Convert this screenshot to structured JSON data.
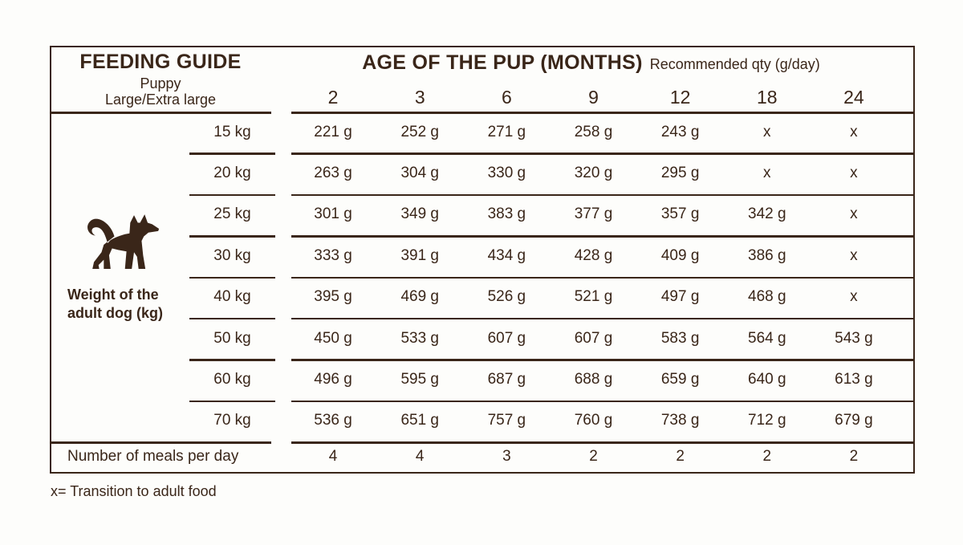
{
  "title_block": {
    "title": "FEEDING GUIDE",
    "subtitle1": "Puppy",
    "subtitle2": "Large/Extra large"
  },
  "age_block": {
    "title": "AGE OF THE PUP (MONTHS)",
    "subtitle": "Recommended qty (g/day)"
  },
  "age_columns": [
    "2",
    "3",
    "6",
    "9",
    "12",
    "18",
    "24"
  ],
  "weight_caption": {
    "line1": "Weight of the",
    "line2": "adult dog (kg)"
  },
  "dog_icon": "dog-silhouette-icon",
  "table": {
    "rows": [
      {
        "weight": "15 kg",
        "values": [
          "221 g",
          "252 g",
          "271 g",
          "258 g",
          "243 g",
          "x",
          "x"
        ]
      },
      {
        "weight": "20 kg",
        "values": [
          "263 g",
          "304 g",
          "330 g",
          "320 g",
          "295 g",
          "x",
          "x"
        ]
      },
      {
        "weight": "25 kg",
        "values": [
          "301 g",
          "349 g",
          "383 g",
          "377 g",
          "357 g",
          "342 g",
          "x"
        ]
      },
      {
        "weight": "30 kg",
        "values": [
          "333 g",
          "391 g",
          "434 g",
          "428 g",
          "409 g",
          "386 g",
          "x"
        ]
      },
      {
        "weight": "40 kg",
        "values": [
          "395 g",
          "469 g",
          "526 g",
          "521 g",
          "497 g",
          "468 g",
          "x"
        ]
      },
      {
        "weight": "50 kg",
        "values": [
          "450 g",
          "533 g",
          "607 g",
          "607 g",
          "583 g",
          "564 g",
          "543 g"
        ]
      },
      {
        "weight": "60 kg",
        "values": [
          "496 g",
          "595 g",
          "687 g",
          "688 g",
          "659 g",
          "640 g",
          "613 g"
        ]
      },
      {
        "weight": "70 kg",
        "values": [
          "536 g",
          "651 g",
          "757 g",
          "760 g",
          "738 g",
          "712 g",
          "679 g"
        ]
      }
    ],
    "meals_row": {
      "label": "Number of meals per day",
      "values": [
        "4",
        "4",
        "3",
        "2",
        "2",
        "2",
        "2"
      ]
    }
  },
  "footnote": "x= Transition to adult food",
  "colors": {
    "ink": "#3A2619",
    "background": "#FDFDFB"
  }
}
